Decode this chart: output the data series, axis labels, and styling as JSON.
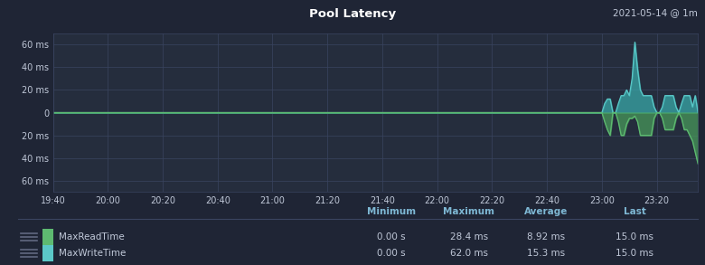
{
  "title": "Pool Latency",
  "datetime_label": "2021-05-14 @ 1m",
  "bg_color": "#1f2535",
  "plot_bg_color": "#252d3d",
  "grid_color": "#3a4460",
  "text_color": "#c0c8d8",
  "title_color": "#ffffff",
  "ylabel_values": [
    "60 ms",
    "40 ms",
    "20 ms",
    "0",
    "20 ms",
    "40 ms",
    "60 ms"
  ],
  "ylabel_nums": [
    60,
    40,
    20,
    0,
    -20,
    -40,
    -60
  ],
  "x_labels": [
    "19:40",
    "20:00",
    "20:20",
    "20:40",
    "21:00",
    "21:20",
    "21:40",
    "22:00",
    "22:20",
    "22:40",
    "23:00",
    "23:20"
  ],
  "x_ticks": [
    0,
    20,
    40,
    60,
    80,
    100,
    120,
    140,
    160,
    180,
    200,
    220
  ],
  "read_color": "#4a9e5c",
  "read_line_color": "#5eba71",
  "write_color": "#3aafaf",
  "write_line_color": "#5bc8c8",
  "legend_items": [
    {
      "label": "MaxReadTime",
      "color": "#5eba71",
      "min": "0.00 s",
      "max": "28.4 ms",
      "avg": "8.92 ms",
      "last": "15.0 ms"
    },
    {
      "label": "MaxWriteTime",
      "color": "#5bc8c8",
      "min": "0.00 s",
      "max": "62.0 ms",
      "avg": "15.3 ms",
      "last": "15.0 ms"
    }
  ],
  "ylim": [
    -70,
    70
  ],
  "xlim": [
    0,
    235
  ]
}
